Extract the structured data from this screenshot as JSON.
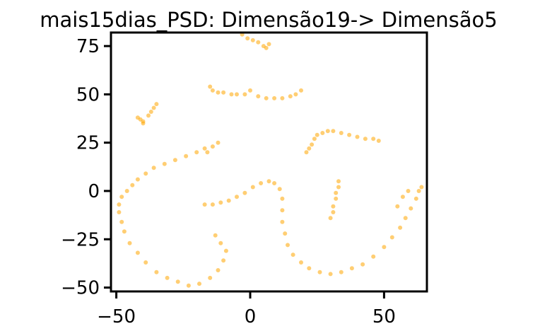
{
  "chart_data": {
    "type": "scatter",
    "title": "mais15dias_PSD: Dimensão19-> Dimensão5",
    "xlabel": "",
    "ylabel": "",
    "xlim": [
      -52,
      66
    ],
    "ylim": [
      -52,
      82
    ],
    "x_ticks": [
      -50,
      0,
      50
    ],
    "x_tick_labels": [
      "−50",
      "0",
      "50"
    ],
    "y_ticks": [
      75,
      50,
      25,
      0,
      -25,
      -50
    ],
    "y_tick_labels": [
      "75",
      "50",
      "25",
      "0",
      "−25",
      "−50"
    ],
    "grid": false,
    "legend": "none",
    "point_color": "#FFA500",
    "series": [
      {
        "values": [
          [
            -3,
            81
          ],
          [
            -1,
            79
          ],
          [
            1,
            78
          ],
          [
            3,
            77
          ],
          [
            5,
            75
          ],
          [
            6,
            74
          ],
          [
            7,
            76
          ],
          [
            -41,
            37
          ],
          [
            -42,
            38
          ],
          [
            -40,
            36
          ],
          [
            -38,
            39
          ],
          [
            -37,
            41
          ],
          [
            -36,
            43
          ],
          [
            -35,
            45
          ],
          [
            -40,
            35
          ],
          [
            -15,
            54
          ],
          [
            -14,
            52
          ],
          [
            -12,
            51
          ],
          [
            -10,
            51
          ],
          [
            -7,
            50
          ],
          [
            -5,
            50
          ],
          [
            -2,
            50
          ],
          [
            0,
            52
          ],
          [
            3,
            49
          ],
          [
            6,
            48
          ],
          [
            9,
            48
          ],
          [
            12,
            48
          ],
          [
            15,
            49
          ],
          [
            17,
            50
          ],
          [
            19,
            52
          ],
          [
            21,
            20
          ],
          [
            22,
            22
          ],
          [
            23,
            24
          ],
          [
            24,
            27
          ],
          [
            25,
            29
          ],
          [
            27,
            30
          ],
          [
            29,
            31
          ],
          [
            31,
            31
          ],
          [
            34,
            30
          ],
          [
            37,
            29
          ],
          [
            40,
            28
          ],
          [
            43,
            27
          ],
          [
            46,
            27
          ],
          [
            48,
            26
          ],
          [
            33,
            5
          ],
          [
            33,
            2
          ],
          [
            32,
            -1
          ],
          [
            32,
            -4
          ],
          [
            31,
            -8
          ],
          [
            31,
            -11
          ],
          [
            30,
            -14
          ],
          [
            -16,
            20
          ],
          [
            -14,
            23
          ],
          [
            -12,
            25
          ],
          [
            -17,
            22
          ],
          [
            -20,
            20
          ],
          [
            -24,
            18
          ],
          [
            -28,
            16
          ],
          [
            -32,
            14
          ],
          [
            -36,
            12
          ],
          [
            -39,
            9
          ],
          [
            -42,
            6
          ],
          [
            -44,
            3
          ],
          [
            -46,
            0
          ],
          [
            -48,
            -3
          ],
          [
            -49,
            -7
          ],
          [
            -49,
            -11
          ],
          [
            -48,
            -16
          ],
          [
            -47,
            -21
          ],
          [
            -45,
            -27
          ],
          [
            -42,
            -32
          ],
          [
            -39,
            -37
          ],
          [
            -35,
            -42
          ],
          [
            -31,
            -45
          ],
          [
            -27,
            -47
          ],
          [
            -23,
            -49
          ],
          [
            -19,
            -48
          ],
          [
            -15,
            -45
          ],
          [
            -12,
            -41
          ],
          [
            -10,
            -36
          ],
          [
            -9,
            -31
          ],
          [
            -11,
            -27
          ],
          [
            -13,
            -23
          ],
          [
            -17,
            -7
          ],
          [
            -14,
            -7
          ],
          [
            -11,
            -6
          ],
          [
            -8,
            -5
          ],
          [
            -5,
            -3
          ],
          [
            -2,
            -1
          ],
          [
            1,
            2
          ],
          [
            4,
            4
          ],
          [
            7,
            5
          ],
          [
            9,
            4
          ],
          [
            11,
            1
          ],
          [
            12,
            -4
          ],
          [
            12,
            -10
          ],
          [
            12,
            -16
          ],
          [
            13,
            -22
          ],
          [
            14,
            -28
          ],
          [
            16,
            -33
          ],
          [
            19,
            -37
          ],
          [
            22,
            -40
          ],
          [
            26,
            -42
          ],
          [
            30,
            -43
          ],
          [
            34,
            -42
          ],
          [
            38,
            -40
          ],
          [
            42,
            -38
          ],
          [
            46,
            -34
          ],
          [
            50,
            -29
          ],
          [
            53,
            -24
          ],
          [
            56,
            -19
          ],
          [
            58,
            -14
          ],
          [
            60,
            -9
          ],
          [
            62,
            -4
          ],
          [
            63,
            0
          ],
          [
            64,
            2
          ],
          [
            59,
            0
          ],
          [
            57,
            -3
          ],
          [
            55,
            -8
          ]
        ]
      }
    ]
  }
}
